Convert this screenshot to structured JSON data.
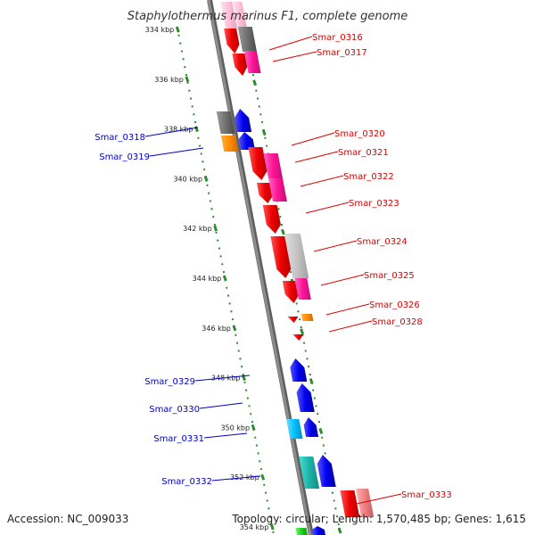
{
  "title": "Staphylothermus marinus F1, complete genome",
  "footer": {
    "accession": "Accession: NC_009033",
    "summary": "Topology: circular; Length: 1,570,485 bp; Genes: 1,615"
  },
  "colors": {
    "axis": "#8c8c8c",
    "tick": "#2e8b2e",
    "label_red": "#dd0000",
    "label_blue": "#0000cc"
  },
  "ticks": [
    {
      "label": "334 kbp"
    },
    {
      "label": "336 kbp"
    },
    {
      "label": "338 kbp"
    },
    {
      "label": "340 kbp"
    },
    {
      "label": "342 kbp"
    },
    {
      "label": "344 kbp"
    },
    {
      "label": "346 kbp"
    },
    {
      "label": "348 kbp"
    },
    {
      "label": "350 kbp"
    },
    {
      "label": "352 kbp"
    },
    {
      "label": "354 kbp"
    }
  ],
  "gene_labels": [
    {
      "name": "Smar_0316",
      "side": "right"
    },
    {
      "name": "Smar_0317",
      "side": "right"
    },
    {
      "name": "Smar_0318",
      "side": "left"
    },
    {
      "name": "Smar_0319",
      "side": "left"
    },
    {
      "name": "Smar_0320",
      "side": "right"
    },
    {
      "name": "Smar_0321",
      "side": "right"
    },
    {
      "name": "Smar_0322",
      "side": "right"
    },
    {
      "name": "Smar_0323",
      "side": "right"
    },
    {
      "name": "Smar_0324",
      "side": "right"
    },
    {
      "name": "Smar_0325",
      "side": "right"
    },
    {
      "name": "Smar_0326",
      "side": "right"
    },
    {
      "name": "Smar_0328",
      "side": "right"
    },
    {
      "name": "Smar_0329",
      "side": "left"
    },
    {
      "name": "Smar_0330",
      "side": "left"
    },
    {
      "name": "Smar_0331",
      "side": "left"
    },
    {
      "name": "Smar_0332",
      "side": "left"
    },
    {
      "name": "Smar_0333",
      "side": "right"
    }
  ]
}
